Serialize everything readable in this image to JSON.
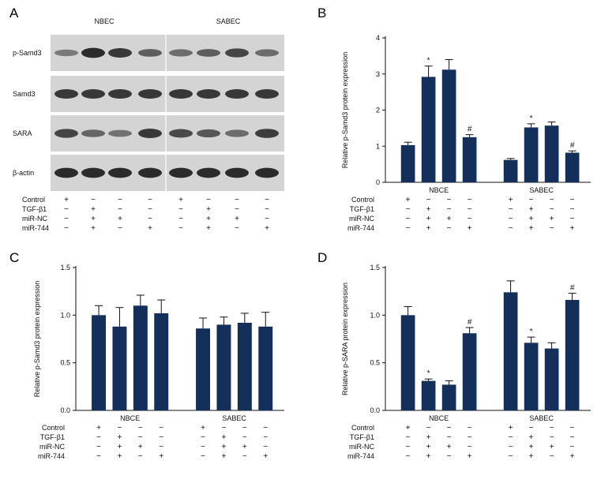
{
  "colors": {
    "bar": "#14305a",
    "axis": "#111111",
    "band": "#1a1a1a",
    "blot_bg": "#d4d4d4"
  },
  "condition_rows": {
    "labels": [
      "Control",
      "TGF-β1",
      "miR-NC",
      "miR-744"
    ],
    "signs": [
      [
        "+",
        "−",
        "−",
        "−"
      ],
      [
        "−",
        "+",
        "+",
        "+"
      ],
      [
        "−",
        "−",
        "+",
        "−"
      ],
      [
        "−",
        "−",
        "−",
        "+"
      ],
      [
        "+",
        "−",
        "−",
        "−"
      ],
      [
        "−",
        "+",
        "+",
        "+"
      ],
      [
        "−",
        "−",
        "+",
        "−"
      ],
      [
        "−",
        "−",
        "−",
        "+"
      ]
    ]
  },
  "blot": {
    "panel_letter": "A",
    "group_headers": [
      "NBEC",
      "SABEC"
    ],
    "row_labels": [
      "p-Samd3",
      "Samd3",
      "SARA",
      "β-actin"
    ],
    "band_intensity": [
      [
        0.35,
        0.95,
        0.85,
        0.55,
        0.45,
        0.55,
        0.75,
        0.45
      ],
      [
        0.85,
        0.85,
        0.85,
        0.85,
        0.85,
        0.85,
        0.85,
        0.85
      ],
      [
        0.75,
        0.5,
        0.4,
        0.85,
        0.7,
        0.6,
        0.45,
        0.8
      ],
      [
        0.95,
        0.95,
        0.95,
        0.95,
        0.95,
        0.95,
        0.95,
        0.95
      ]
    ]
  },
  "chart_data": [
    {
      "panel": "B",
      "type": "bar",
      "ylabel": "Relative p-Samd3 protein expression",
      "ylim": [
        0,
        4
      ],
      "yticks": [
        "0",
        "1",
        "2",
        "3",
        "4"
      ],
      "groups": [
        "NBCE",
        "SABEC"
      ],
      "values": [
        1.03,
        2.92,
        3.12,
        1.25,
        0.62,
        1.52,
        1.57,
        0.82
      ],
      "errors": [
        0.08,
        0.3,
        0.28,
        0.07,
        0.04,
        0.1,
        0.1,
        0.05
      ],
      "marks": [
        "",
        "*",
        "",
        "#",
        "",
        "*",
        "",
        "#"
      ]
    },
    {
      "panel": "C",
      "type": "bar",
      "ylabel": "Relative p-Samd3 protein expression",
      "ylim": [
        0,
        1.5
      ],
      "yticks": [
        "0.0",
        "0.5",
        "1.0",
        "1.5"
      ],
      "groups": [
        "NBCE",
        "SABEC"
      ],
      "values": [
        1.0,
        0.88,
        1.1,
        1.02,
        0.86,
        0.9,
        0.92,
        0.88
      ],
      "errors": [
        0.1,
        0.2,
        0.11,
        0.14,
        0.11,
        0.08,
        0.1,
        0.15
      ],
      "marks": [
        "",
        "",
        "",
        "",
        "",
        "",
        "",
        ""
      ]
    },
    {
      "panel": "D",
      "type": "bar",
      "ylabel": "Relative p-SARA protein expression",
      "ylim": [
        0,
        1.5
      ],
      "yticks": [
        "0.0",
        "0.5",
        "1.0",
        "1.5"
      ],
      "groups": [
        "NBCE",
        "SABEC"
      ],
      "values": [
        1.0,
        0.31,
        0.27,
        0.81,
        1.24,
        0.71,
        0.65,
        1.16
      ],
      "errors": [
        0.09,
        0.02,
        0.04,
        0.06,
        0.12,
        0.06,
        0.06,
        0.07
      ],
      "marks": [
        "",
        "*",
        "",
        "#",
        "",
        "*",
        "",
        "#"
      ]
    }
  ]
}
